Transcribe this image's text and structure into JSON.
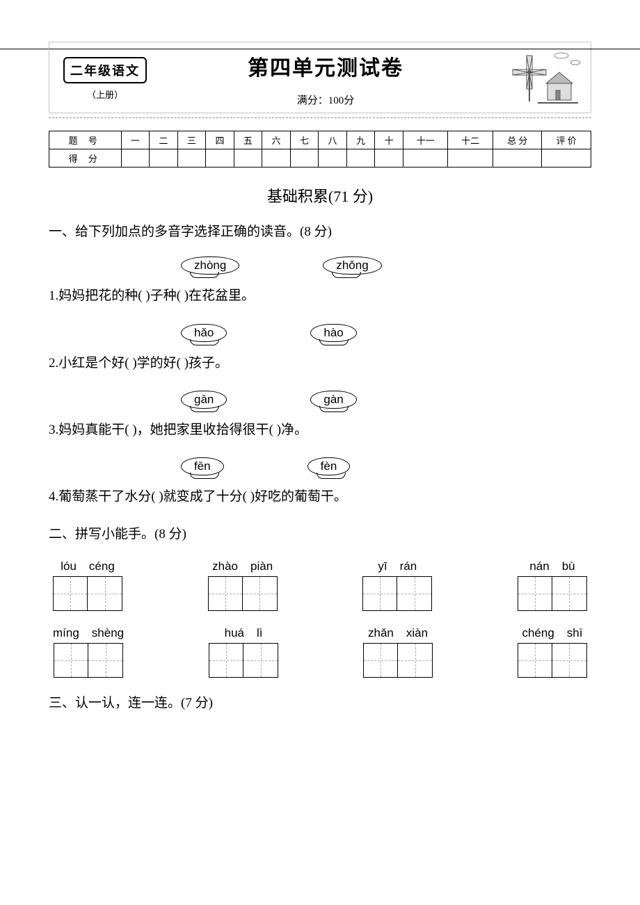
{
  "header": {
    "grade_label": "二年级语文",
    "grade_sub": "（上册）",
    "title": "第四单元测试卷",
    "full_score": "满分：100分"
  },
  "score_table": {
    "row1_label": "题 号",
    "row2_label": "得 分",
    "cols": [
      "一",
      "二",
      "三",
      "四",
      "五",
      "六",
      "七",
      "八",
      "九",
      "十",
      "十一",
      "十二",
      "总 分",
      "评 价"
    ]
  },
  "big_section": "基础积累(71 分)",
  "q1": {
    "heading": "一、给下列加点的多音字选择正确的读音。(8 分)",
    "items": [
      {
        "bubbles": [
          "zhòng",
          "zhǒng"
        ],
        "sentence_pre": "1.妈妈把花的种(",
        "sentence_mid1": ")子种(",
        "sentence_mid2": ")在花盆里。"
      },
      {
        "bubbles": [
          "hǎo",
          "hào"
        ],
        "sentence_pre": "2.小红是个好(",
        "sentence_mid1": ")学的好(",
        "sentence_mid2": ")孩子。"
      },
      {
        "bubbles": [
          "gān",
          "gàn"
        ],
        "sentence_pre": "3.妈妈真能干(",
        "sentence_mid1": ")，她把家里收拾得很干(",
        "sentence_mid2": ")净。"
      },
      {
        "bubbles": [
          "fēn",
          "fèn"
        ],
        "sentence_pre": "4.葡萄蒸干了水分(",
        "sentence_mid1": ")就变成了十分(",
        "sentence_mid2": ")好吃的葡萄干。"
      }
    ]
  },
  "q2": {
    "heading": "二、拼写小能手。(8 分)",
    "rows": [
      [
        [
          "lóu",
          "céng"
        ],
        [
          "zhào",
          "piàn"
        ],
        [
          "yī",
          "rán"
        ],
        [
          "nán",
          "bù"
        ]
      ],
      [
        [
          "míng",
          "shèng"
        ],
        [
          "huá",
          "lì"
        ],
        [
          "zhǎn",
          "xiàn"
        ],
        [
          "chéng",
          "shì"
        ]
      ]
    ]
  },
  "q3": {
    "heading": "三、认一认，连一连。(7 分)"
  },
  "colors": {
    "text": "#000000",
    "bg": "#ffffff",
    "dashed": "#888888",
    "grid_dash": "#aaaaaa"
  }
}
